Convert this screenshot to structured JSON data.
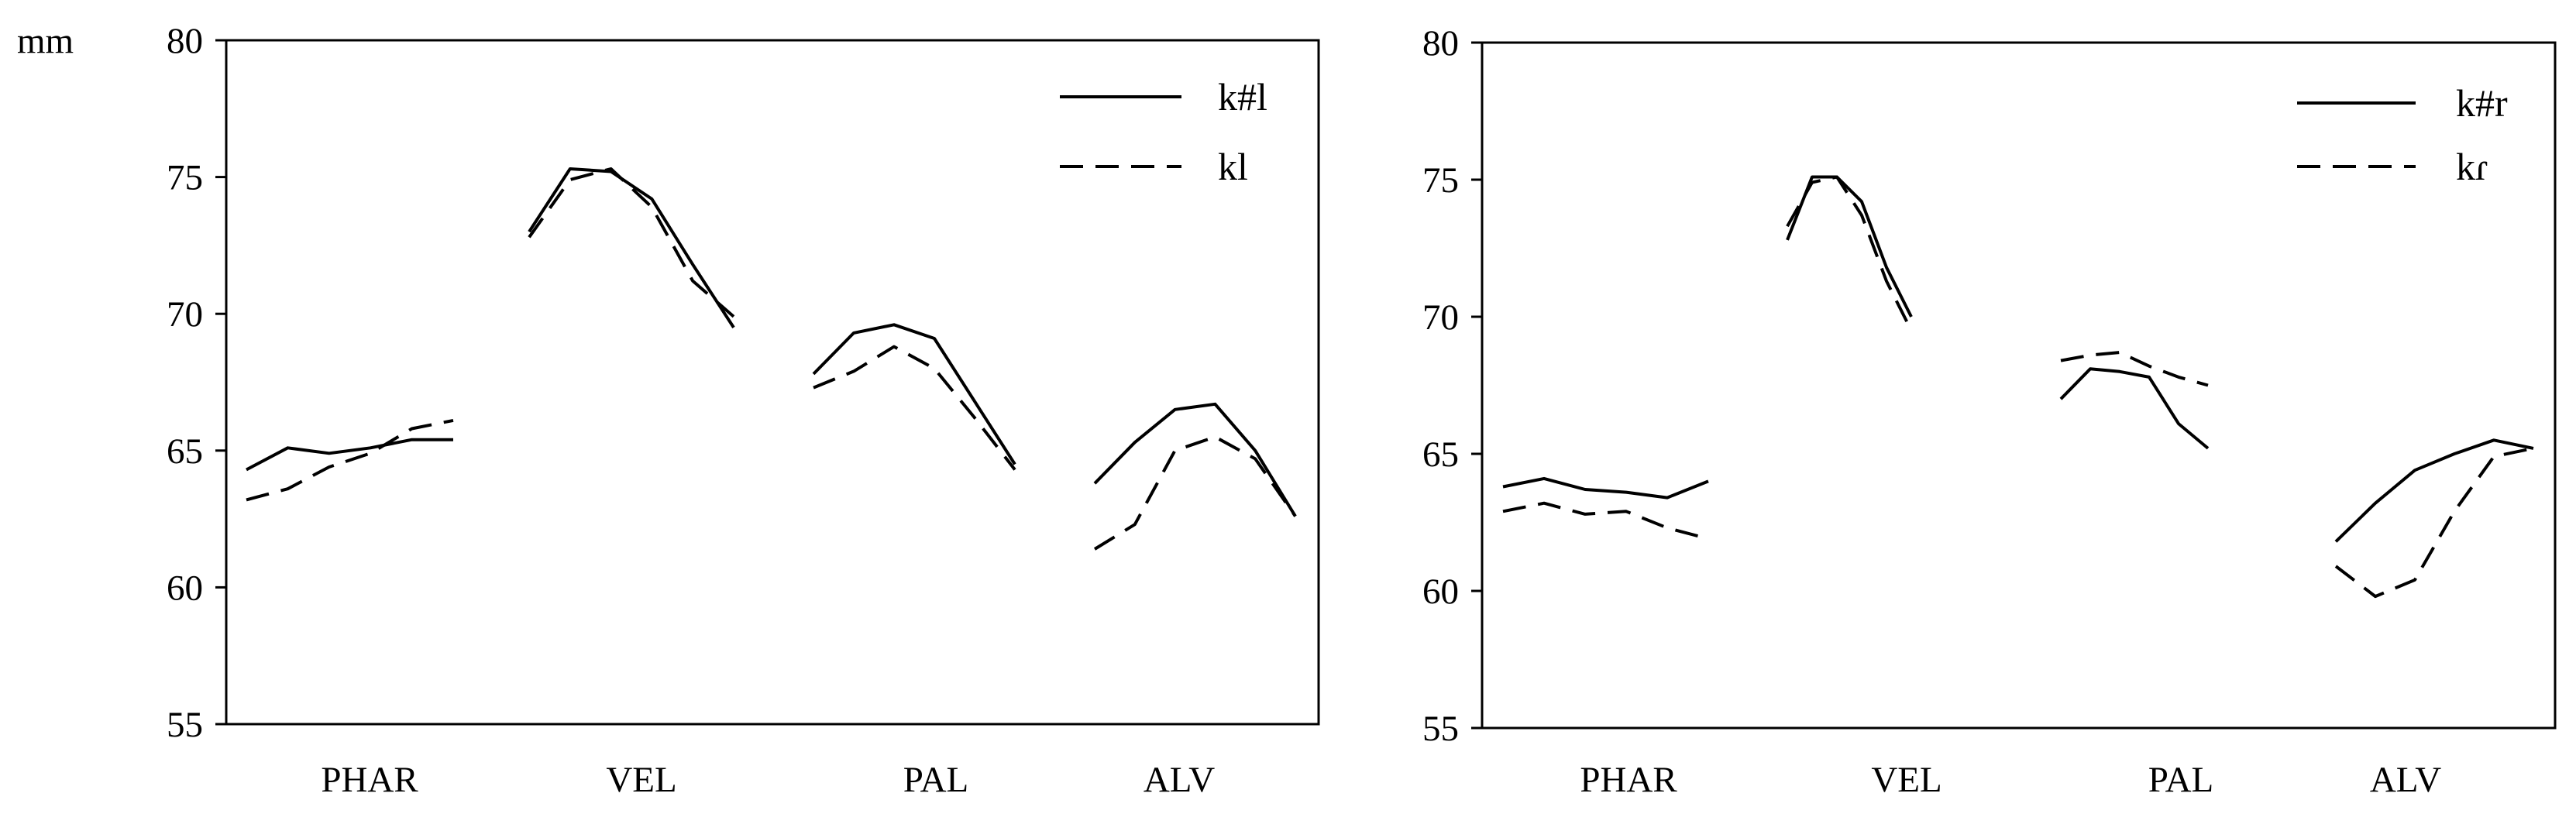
{
  "chart_data": [
    {
      "type": "line",
      "unit_label": "mm",
      "ylim": [
        55,
        80
      ],
      "y_ticks": [
        "55",
        "60",
        "65",
        "70",
        "75",
        "80"
      ],
      "categories": [
        "PHAR",
        "VEL",
        "PAL",
        "ALV"
      ],
      "legend_position": "top-right",
      "grid": false,
      "series": [
        {
          "name": "k#l",
          "style": "solid",
          "segments": [
            [
              64.3,
              65.1,
              64.9,
              65.1,
              65.4,
              65.4
            ],
            [
              73.0,
              75.3,
              75.2,
              74.2,
              71.8,
              69.5
            ],
            [
              67.8,
              69.3,
              69.6,
              69.1,
              66.8,
              64.5
            ],
            [
              63.8,
              65.3,
              66.5,
              66.7,
              65.0,
              62.6
            ]
          ]
        },
        {
          "name": "kl",
          "style": "dashed",
          "segments": [
            [
              63.2,
              63.6,
              64.4,
              64.9,
              65.8,
              66.1
            ],
            [
              72.8,
              74.9,
              75.3,
              73.9,
              71.2,
              69.9
            ],
            [
              67.3,
              67.9,
              68.8,
              68.0,
              66.2,
              64.3
            ],
            [
              61.4,
              62.3,
              65.0,
              65.5,
              64.7,
              62.6
            ]
          ]
        }
      ]
    },
    {
      "type": "line",
      "unit_label": "",
      "ylim": [
        55,
        80
      ],
      "y_ticks": [
        "55",
        "60",
        "65",
        "70",
        "75",
        "80"
      ],
      "categories": [
        "PHAR",
        "VEL",
        "PAL",
        "ALV"
      ],
      "legend_position": "top-right",
      "grid": false,
      "series": [
        {
          "name": "k#r",
          "style": "solid",
          "segments": [
            [
              63.8,
              64.1,
              63.7,
              63.6,
              63.4,
              64.0
            ],
            [
              72.8,
              75.1,
              75.1,
              74.2,
              71.8,
              70.0
            ],
            [
              67.0,
              68.1,
              68.0,
              67.8,
              66.1,
              65.2
            ],
            [
              61.8,
              63.2,
              64.4,
              65.0,
              65.5,
              65.2
            ]
          ]
        },
        {
          "name": "kɾ",
          "style": "dashed",
          "segments": [
            [
              62.9,
              63.2,
              62.8,
              62.9,
              62.3,
              61.9
            ],
            [
              73.3,
              74.9,
              75.1,
              73.7,
              71.3,
              69.5
            ],
            [
              68.4,
              68.6,
              68.7,
              68.2,
              67.8,
              67.5
            ],
            [
              60.9,
              59.8,
              60.4,
              62.9,
              64.9,
              65.2
            ]
          ]
        }
      ]
    }
  ]
}
